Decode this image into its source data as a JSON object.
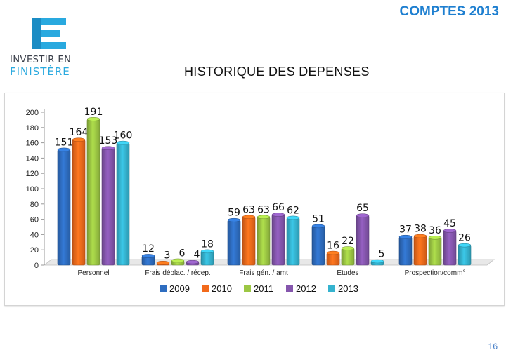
{
  "header": {
    "report_title": "COMPTES 2013",
    "logo_line1": "INVESTIR EN",
    "logo_line2": "FINISTÈRE"
  },
  "chart_title": "HISTORIQUE DES DEPENSES",
  "page_number": "16",
  "colors": {
    "title_blue": "#1e7fd0",
    "logo_blue": "#29a9df",
    "logo_text": "#3a3f4a"
  },
  "chart_data": {
    "type": "bar",
    "title": "HISTORIQUE DES DEPENSES",
    "xlabel": "",
    "ylabel": "",
    "ylim": [
      0,
      200
    ],
    "yticks": [
      0,
      20,
      40,
      60,
      80,
      100,
      120,
      140,
      160,
      180,
      200
    ],
    "grid": false,
    "legend_position": "bottom",
    "categories": [
      "Personnel",
      "Frais déplac. / récep.",
      "Frais gén. / amt",
      "Etudes",
      "Prospection/comm°"
    ],
    "series": [
      {
        "name": "2009",
        "color": "#2e6dc0",
        "values": [
          151,
          12,
          59,
          51,
          37
        ]
      },
      {
        "name": "2010",
        "color": "#f26a1b",
        "values": [
          164,
          3,
          63,
          16,
          38
        ]
      },
      {
        "name": "2011",
        "color": "#9cc744",
        "values": [
          191,
          6,
          63,
          22,
          36
        ]
      },
      {
        "name": "2012",
        "color": "#8556ad",
        "values": [
          153,
          4,
          66,
          65,
          45
        ]
      },
      {
        "name": "2013",
        "color": "#35b3cf",
        "values": [
          160,
          18,
          62,
          5,
          26
        ]
      }
    ]
  }
}
